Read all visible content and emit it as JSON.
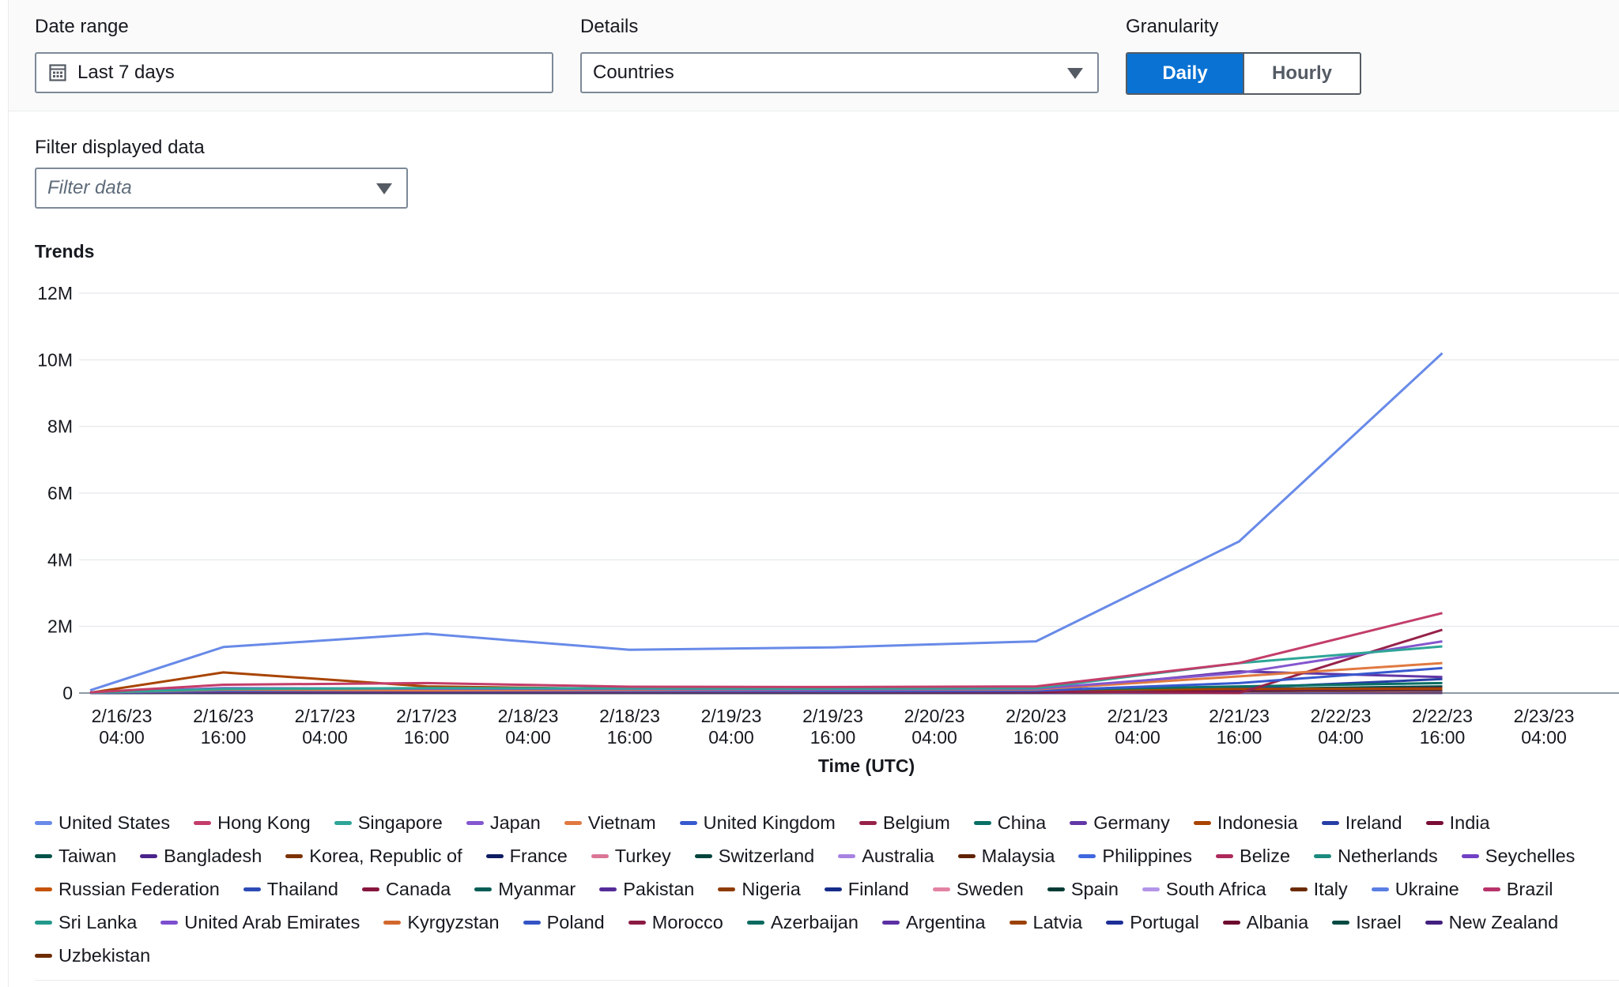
{
  "filters": {
    "date_range_label": "Date range",
    "date_range_value": "Last 7 days",
    "details_label": "Details",
    "details_value": "Countries",
    "granularity_label": "Granularity",
    "granularity_options": [
      "Daily",
      "Hourly"
    ],
    "granularity_selected": "Daily",
    "filter_label": "Filter displayed data",
    "filter_placeholder": "Filter data"
  },
  "section_title": "Trends",
  "colors": {
    "accent": "#0972d3",
    "grid": "#e9ebed",
    "axis_text": "#16191f"
  },
  "chart_data": {
    "type": "line",
    "xlabel": "Time (UTC)",
    "ylabel": "",
    "ylim": [
      0,
      12000000
    ],
    "yticks": [
      "0",
      "2M",
      "4M",
      "6M",
      "8M",
      "10M",
      "12M"
    ],
    "xticks": [
      [
        "2/16/23",
        "04:00"
      ],
      [
        "2/16/23",
        "16:00"
      ],
      [
        "2/17/23",
        "04:00"
      ],
      [
        "2/17/23",
        "16:00"
      ],
      [
        "2/18/23",
        "04:00"
      ],
      [
        "2/18/23",
        "16:00"
      ],
      [
        "2/19/23",
        "04:00"
      ],
      [
        "2/19/23",
        "16:00"
      ],
      [
        "2/20/23",
        "04:00"
      ],
      [
        "2/20/23",
        "16:00"
      ],
      [
        "2/21/23",
        "04:00"
      ],
      [
        "2/21/23",
        "16:00"
      ],
      [
        "2/22/23",
        "04:00"
      ],
      [
        "2/22/23",
        "16:00"
      ],
      [
        "2/23/23",
        "04:00"
      ]
    ],
    "x": [
      "2/16/23 00:00",
      "2/17/23 00:00",
      "2/18/23 00:00",
      "2/19/23 00:00",
      "2/20/23 00:00",
      "2/21/23 00:00",
      "2/22/23 00:00",
      "2/23/23 00:00"
    ],
    "legend_position": "bottom",
    "grid": true,
    "series": [
      {
        "name": "United States",
        "color": "#688ae8",
        "values": [
          80000,
          1380000,
          1780000,
          1300000,
          1370000,
          1550000,
          4550000,
          10200000
        ]
      },
      {
        "name": "Hong Kong",
        "color": "#c33d69",
        "values": [
          20000,
          250000,
          300000,
          190000,
          180000,
          200000,
          900000,
          2400000
        ]
      },
      {
        "name": "Singapore",
        "color": "#2ea597",
        "values": [
          10000,
          120000,
          150000,
          140000,
          130000,
          150000,
          900000,
          1400000
        ]
      },
      {
        "name": "Japan",
        "color": "#8456ce",
        "values": [
          10000,
          150000,
          130000,
          120000,
          110000,
          130000,
          600000,
          1550000
        ]
      },
      {
        "name": "Vietnam",
        "color": "#e07941",
        "values": [
          10000,
          100000,
          80000,
          90000,
          100000,
          110000,
          500000,
          900000
        ]
      },
      {
        "name": "United Kingdom",
        "color": "#3759ce",
        "values": [
          5000,
          60000,
          70000,
          60000,
          60000,
          70000,
          300000,
          750000
        ]
      },
      {
        "name": "Belgium",
        "color": "#962249",
        "values": [
          5000,
          40000,
          50000,
          40000,
          40000,
          50000,
          0,
          1900000
        ]
      },
      {
        "name": "China",
        "color": "#096f64",
        "values": [
          5000,
          80000,
          90000,
          80000,
          80000,
          90000,
          200000,
          300000
        ]
      },
      {
        "name": "Germany",
        "color": "#6237a7",
        "values": [
          5000,
          60000,
          60000,
          50000,
          50000,
          60000,
          650000,
          480000
        ]
      },
      {
        "name": "Indonesia",
        "color": "#a84401",
        "values": [
          10000,
          620000,
          200000,
          120000,
          100000,
          90000,
          120000,
          130000
        ]
      },
      {
        "name": "Ireland",
        "color": "#273ea5",
        "values": [
          5000,
          30000,
          30000,
          30000,
          30000,
          40000,
          150000,
          420000
        ]
      },
      {
        "name": "India",
        "color": "#780d35",
        "values": [
          5000,
          30000,
          30000,
          30000,
          30000,
          30000,
          100000,
          150000
        ]
      },
      {
        "name": "Taiwan",
        "color": "#03524a",
        "values": [
          3000,
          20000,
          20000,
          20000,
          20000,
          30000,
          120000,
          200000
        ]
      },
      {
        "name": "Bangladesh",
        "color": "#4a238b",
        "values": [
          3000,
          20000,
          20000,
          20000,
          20000,
          20000,
          80000,
          120000
        ]
      },
      {
        "name": "Korea, Republic of",
        "color": "#7c3304",
        "values": [
          3000,
          20000,
          20000,
          20000,
          20000,
          20000,
          60000,
          100000
        ]
      },
      {
        "name": "France",
        "color": "#0e1c60",
        "values": [
          3000,
          20000,
          20000,
          20000,
          20000,
          20000,
          60000,
          90000
        ]
      },
      {
        "name": "Turkey",
        "color": "#da7596",
        "values": [
          2000,
          15000,
          15000,
          15000,
          15000,
          15000,
          50000,
          80000
        ]
      },
      {
        "name": "Switzerland",
        "color": "#01443d",
        "values": [
          2000,
          15000,
          15000,
          15000,
          15000,
          15000,
          50000,
          70000
        ]
      },
      {
        "name": "Australia",
        "color": "#a783e1",
        "values": [
          2000,
          15000,
          15000,
          15000,
          15000,
          15000,
          40000,
          60000
        ]
      },
      {
        "name": "Malaysia",
        "color": "#5f2301",
        "values": [
          2000,
          10000,
          10000,
          10000,
          10000,
          10000,
          40000,
          50000
        ]
      },
      {
        "name": "Philippines",
        "color": "#4066df",
        "values": [
          2000,
          10000,
          10000,
          10000,
          10000,
          10000,
          30000,
          50000
        ]
      },
      {
        "name": "Belize",
        "color": "#ad295a",
        "values": [
          1000,
          10000,
          10000,
          10000,
          10000,
          10000,
          30000,
          40000
        ]
      },
      {
        "name": "Netherlands",
        "color": "#1b8a7e",
        "values": [
          1000,
          10000,
          10000,
          10000,
          10000,
          10000,
          30000,
          40000
        ]
      },
      {
        "name": "Seychelles",
        "color": "#7140c4",
        "values": [
          1000,
          10000,
          10000,
          10000,
          10000,
          10000,
          20000,
          30000
        ]
      },
      {
        "name": "Russian Federation",
        "color": "#c55305",
        "values": [
          1000,
          10000,
          10000,
          10000,
          10000,
          10000,
          20000,
          30000
        ]
      },
      {
        "name": "Thailand",
        "color": "#2d4bb6",
        "values": [
          1000,
          8000,
          8000,
          8000,
          8000,
          8000,
          20000,
          30000
        ]
      },
      {
        "name": "Canada",
        "color": "#87163f",
        "values": [
          1000,
          8000,
          8000,
          8000,
          8000,
          8000,
          20000,
          25000
        ]
      },
      {
        "name": "Myanmar",
        "color": "#045e55",
        "values": [
          1000,
          6000,
          6000,
          6000,
          6000,
          6000,
          15000,
          20000
        ]
      },
      {
        "name": "Pakistan",
        "color": "#542c98",
        "values": [
          1000,
          6000,
          6000,
          6000,
          6000,
          6000,
          15000,
          20000
        ]
      },
      {
        "name": "Nigeria",
        "color": "#8e3b03",
        "values": [
          1000,
          5000,
          5000,
          5000,
          5000,
          5000,
          12000,
          18000
        ]
      },
      {
        "name": "Finland",
        "color": "#162c8a",
        "values": [
          1000,
          5000,
          5000,
          5000,
          5000,
          5000,
          12000,
          16000
        ]
      },
      {
        "name": "Sweden",
        "color": "#e283a3",
        "values": [
          1000,
          5000,
          5000,
          5000,
          5000,
          5000,
          10000,
          15000
        ]
      },
      {
        "name": "Spain",
        "color": "#023b35",
        "values": [
          1000,
          4000,
          4000,
          4000,
          4000,
          4000,
          10000,
          14000
        ]
      },
      {
        "name": "South Africa",
        "color": "#b495e8",
        "values": [
          1000,
          4000,
          4000,
          4000,
          4000,
          4000,
          9000,
          12000
        ]
      },
      {
        "name": "Italy",
        "color": "#6b2b02",
        "values": [
          1000,
          4000,
          4000,
          4000,
          4000,
          4000,
          9000,
          12000
        ]
      },
      {
        "name": "Ukraine",
        "color": "#5a7fe3",
        "values": [
          1000,
          3000,
          3000,
          3000,
          3000,
          3000,
          8000,
          10000
        ]
      },
      {
        "name": "Brazil",
        "color": "#b8336a",
        "values": [
          1000,
          3000,
          3000,
          3000,
          3000,
          3000,
          8000,
          10000
        ]
      },
      {
        "name": "Sri Lanka",
        "color": "#23998b",
        "values": [
          1000,
          3000,
          3000,
          3000,
          3000,
          3000,
          7000,
          9000
        ]
      },
      {
        "name": "United Arab Emirates",
        "color": "#7b4fcf",
        "values": [
          1000,
          3000,
          3000,
          3000,
          3000,
          3000,
          7000,
          9000
        ]
      },
      {
        "name": "Kyrgyzstan",
        "color": "#d2682c",
        "values": [
          1000,
          2000,
          2000,
          2000,
          2000,
          2000,
          6000,
          8000
        ]
      },
      {
        "name": "Poland",
        "color": "#3454c4",
        "values": [
          1000,
          2000,
          2000,
          2000,
          2000,
          2000,
          6000,
          8000
        ]
      },
      {
        "name": "Morocco",
        "color": "#8c1b44",
        "values": [
          1000,
          2000,
          2000,
          2000,
          2000,
          2000,
          5000,
          7000
        ]
      },
      {
        "name": "Azerbaijan",
        "color": "#0a6a5f",
        "values": [
          1000,
          2000,
          2000,
          2000,
          2000,
          2000,
          5000,
          7000
        ]
      },
      {
        "name": "Argentina",
        "color": "#5b30a3",
        "values": [
          1000,
          2000,
          2000,
          2000,
          2000,
          2000,
          5000,
          6000
        ]
      },
      {
        "name": "Latvia",
        "color": "#9b4104",
        "values": [
          1000,
          2000,
          2000,
          2000,
          2000,
          2000,
          4000,
          6000
        ]
      },
      {
        "name": "Portugal",
        "color": "#1d2f96",
        "values": [
          1000,
          2000,
          2000,
          2000,
          2000,
          2000,
          4000,
          5000
        ]
      },
      {
        "name": "Albania",
        "color": "#6d0a2f",
        "values": [
          1000,
          1000,
          1000,
          1000,
          1000,
          1000,
          4000,
          5000
        ]
      },
      {
        "name": "Israel",
        "color": "#034a42",
        "values": [
          1000,
          1000,
          1000,
          1000,
          1000,
          1000,
          3000,
          5000
        ]
      },
      {
        "name": "New Zealand",
        "color": "#43207e",
        "values": [
          1000,
          1000,
          1000,
          1000,
          1000,
          1000,
          3000,
          4000
        ]
      },
      {
        "name": "Uzbekistan",
        "color": "#6e2c03",
        "values": [
          1000,
          1000,
          1000,
          1000,
          1000,
          1000,
          3000,
          4000
        ]
      }
    ]
  }
}
